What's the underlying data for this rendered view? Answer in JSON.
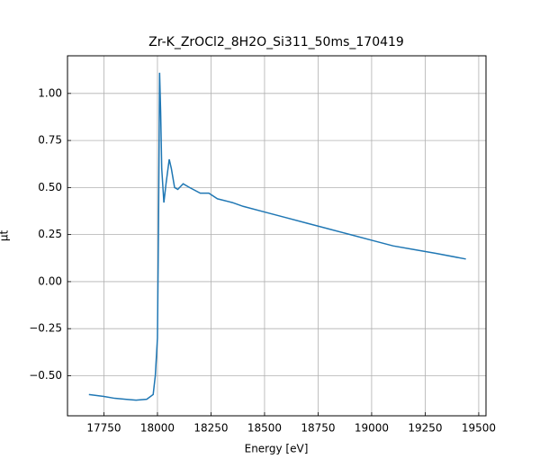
{
  "chart_data": {
    "type": "line",
    "title": "Zr-K_ZrOCl2_8H2O_Si311_50ms_170419",
    "x_label": "Energy [eV]",
    "y_label": "μt",
    "x": [
      17680,
      17750,
      17800,
      17850,
      17900,
      17950,
      17980,
      17990,
      18000,
      18005,
      18010,
      18015,
      18020,
      18030,
      18040,
      18055,
      18065,
      18080,
      18095,
      18120,
      18150,
      18200,
      18240,
      18280,
      18350,
      18400,
      18500,
      18600,
      18700,
      18800,
      18900,
      19000,
      19100,
      19200,
      19300,
      19440
    ],
    "series": [
      {
        "name": "μt",
        "color": "#1f77b4",
        "values": [
          -0.6,
          -0.61,
          -0.62,
          -0.625,
          -0.63,
          -0.625,
          -0.6,
          -0.5,
          -0.3,
          0.3,
          1.11,
          0.9,
          0.6,
          0.42,
          0.52,
          0.65,
          0.6,
          0.5,
          0.49,
          0.52,
          0.5,
          0.47,
          0.47,
          0.44,
          0.42,
          0.4,
          0.37,
          0.34,
          0.31,
          0.28,
          0.25,
          0.22,
          0.19,
          0.17,
          0.15,
          0.12
        ]
      }
    ],
    "xlim": [
      17580,
      19534
    ],
    "ylim": [
      -0.713,
      1.2
    ],
    "xticks": [
      17750,
      18000,
      18250,
      18500,
      18750,
      19000,
      19250,
      19500
    ],
    "yticks": [
      {
        "value": -0.5,
        "label": "−0.50"
      },
      {
        "value": -0.25,
        "label": "−0.25"
      },
      {
        "value": 0,
        "label": "0.00"
      },
      {
        "value": 0.25,
        "label": "0.25"
      },
      {
        "value": 0.5,
        "label": "0.50"
      },
      {
        "value": 0.75,
        "label": "0.75"
      },
      {
        "value": 1,
        "label": "1.00"
      }
    ],
    "grid": true
  }
}
